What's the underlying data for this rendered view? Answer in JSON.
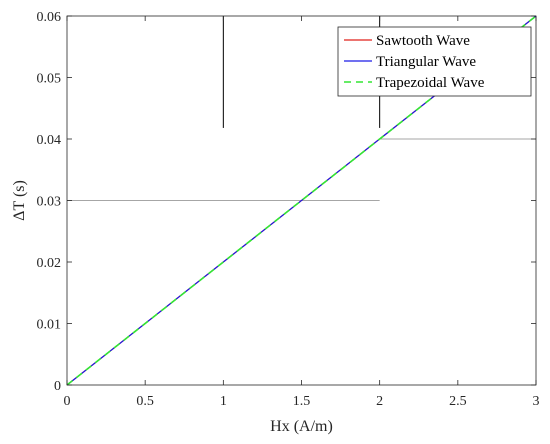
{
  "chart_data": {
    "type": "line",
    "xlabel": "Hx (A/m)",
    "ylabel": "ΔT (s)",
    "xlim": [
      0,
      3
    ],
    "ylim": [
      0,
      0.06
    ],
    "x_ticks": [
      0,
      0.5,
      1,
      1.5,
      2,
      2.5,
      3
    ],
    "x_tick_labels": [
      "0",
      "0.5",
      "1",
      "1.5",
      "2",
      "2.5",
      "3"
    ],
    "y_ticks": [
      0,
      0.01,
      0.02,
      0.03,
      0.04,
      0.05,
      0.06
    ],
    "y_tick_labels": [
      "0",
      "0.01",
      "0.02",
      "0.03",
      "0.04",
      "0.05",
      "0.06"
    ],
    "grid": false,
    "legend_position": "top-right",
    "series": [
      {
        "name": "Sawtooth Wave",
        "color": "#e0201b",
        "dash": "solid",
        "x": [
          0,
          3
        ],
        "y": [
          0,
          0.06
        ]
      },
      {
        "name": "Triangular Wave",
        "color": "#1a1ae6",
        "dash": "solid",
        "x": [
          0,
          3
        ],
        "y": [
          0,
          0.06
        ]
      },
      {
        "name": "Trapezoidal Wave",
        "color": "#33e633",
        "dash": "dashed",
        "x": [
          0,
          3
        ],
        "y": [
          0,
          0.06
        ]
      }
    ],
    "reference_lines": [
      {
        "type": "horizontal",
        "y": 0.03,
        "x_from": 0,
        "x_to": 2,
        "color": "#a6a6a6"
      },
      {
        "type": "horizontal",
        "y": 0.04,
        "x_from": 2,
        "x_to": 3,
        "color": "#a6a6a6"
      },
      {
        "type": "vertical",
        "x": 1,
        "y_from": 0.0418,
        "y_to": 0.06,
        "color": "#000000"
      },
      {
        "type": "vertical",
        "x": 2,
        "y_from": 0.0418,
        "y_to": 0.06,
        "color": "#000000"
      }
    ]
  }
}
